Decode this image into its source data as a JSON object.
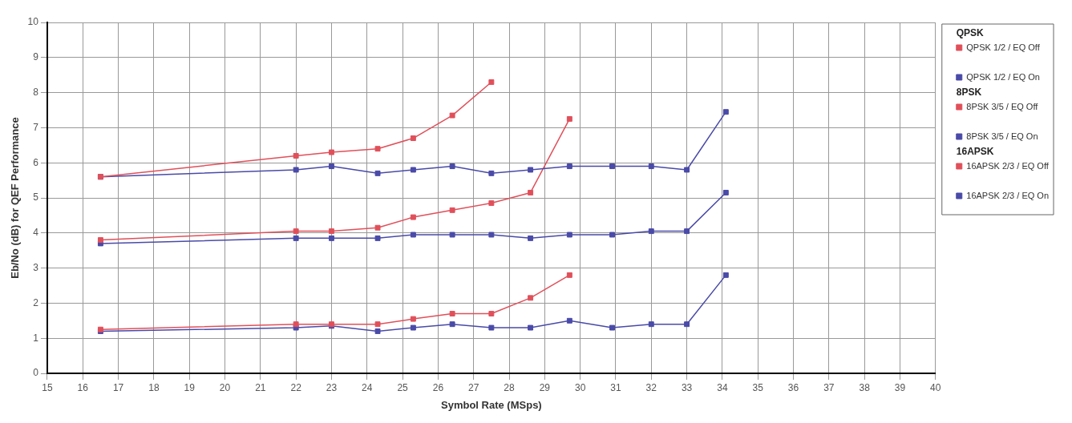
{
  "chart_data": {
    "type": "line",
    "xlabel": "Symbol Rate (MSps)",
    "ylabel": "Eb/No (dB) for QEF Performance",
    "xlim": [
      15,
      40
    ],
    "xticks": [
      15,
      16,
      17,
      18,
      19,
      20,
      21,
      22,
      23,
      24,
      25,
      26,
      27,
      28,
      29,
      30,
      31,
      32,
      33,
      34,
      35,
      36,
      37,
      38,
      39,
      40
    ],
    "ylim": [
      0,
      10
    ],
    "yticks": [
      0,
      1,
      2,
      3,
      4,
      5,
      6,
      7,
      8,
      9,
      10
    ],
    "grid": true,
    "legend": "right",
    "marker": "square",
    "line_style": "solid",
    "annotations": [
      "QPSK",
      "8PSK",
      "16APSK"
    ],
    "series": [
      {
        "name": "QPSK 1/2 / EQ Off",
        "color": "#e0505a",
        "x": [
          16.5,
          22,
          23,
          24.3,
          25.3,
          26.4,
          27.5
        ],
        "values": [
          5.6,
          6.2,
          6.3,
          6.4,
          6.7,
          7.35,
          8.3
        ]
      },
      {
        "name": "QPSK 1/2 / EQ On",
        "color": "#4a4aa8",
        "x": [
          16.5,
          22,
          23,
          24.3,
          25.3,
          26.4,
          27.5,
          28.6,
          29.7,
          30.9,
          32,
          33,
          34.1
        ],
        "values": [
          5.6,
          5.8,
          5.9,
          5.7,
          5.8,
          5.9,
          5.7,
          5.8,
          5.9,
          5.9,
          5.9,
          5.8,
          7.45
        ]
      },
      {
        "name": "8PSK 3/5 / EQ Off",
        "color": "#e0505a",
        "x": [
          16.5,
          22,
          23,
          24.3,
          25.3,
          26.4,
          27.5,
          28.6,
          29.7
        ],
        "values": [
          3.8,
          4.05,
          4.05,
          4.15,
          4.45,
          4.65,
          4.85,
          5.15,
          7.25
        ]
      },
      {
        "name": "8PSK 3/5 / EQ On",
        "color": "#4a4aa8",
        "x": [
          16.5,
          22,
          23,
          24.3,
          25.3,
          26.4,
          27.5,
          28.6,
          29.7,
          30.9,
          32,
          33,
          34.1
        ],
        "values": [
          3.7,
          3.85,
          3.85,
          3.85,
          3.95,
          3.95,
          3.95,
          3.85,
          3.95,
          3.95,
          4.05,
          4.05,
          5.15
        ]
      },
      {
        "name": "16APSK 2/3 / EQ Off",
        "color": "#e0505a",
        "x": [
          16.5,
          22,
          23,
          24.3,
          25.3,
          26.4,
          27.5,
          28.6,
          29.7
        ],
        "values": [
          1.25,
          1.4,
          1.4,
          1.4,
          1.55,
          1.7,
          1.7,
          2.15,
          2.8
        ]
      },
      {
        "name": "16APSK 2/3 / EQ On",
        "color": "#4a4aa8",
        "x": [
          16.5,
          22,
          23,
          24.3,
          25.3,
          26.4,
          27.5,
          28.6,
          29.7,
          30.9,
          32,
          33,
          34.1
        ],
        "values": [
          1.2,
          1.3,
          1.35,
          1.2,
          1.3,
          1.4,
          1.3,
          1.3,
          1.5,
          1.3,
          1.4,
          1.4,
          2.8
        ]
      }
    ]
  }
}
